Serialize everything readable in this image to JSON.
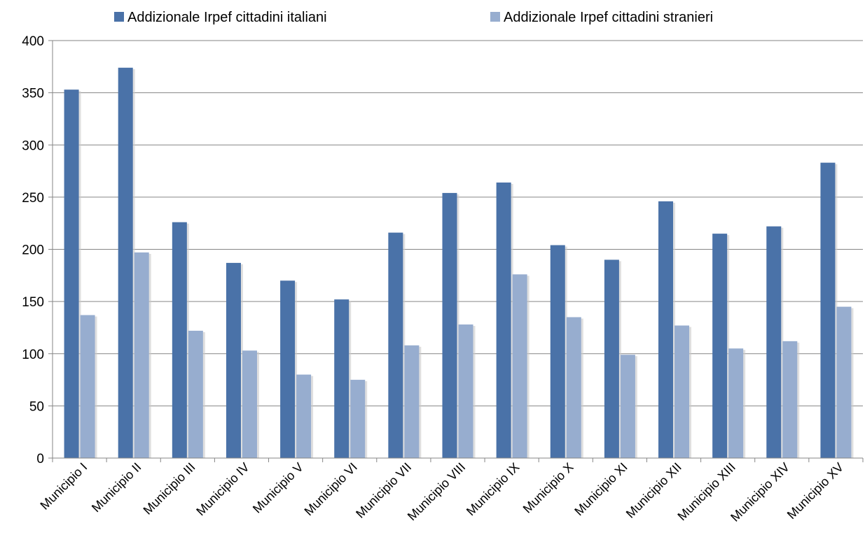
{
  "chart_data": {
    "type": "bar",
    "categories": [
      "Municipio I",
      "Municipio II",
      "Municipio III",
      "Municipio IV",
      "Municipio V",
      "Municipio VI",
      "Municipio VII",
      "Municipio VIII",
      "Municipio IX",
      "Municipio X",
      "Municipio XI",
      "Municipio XII",
      "Municipio XIII",
      "Municipio XIV",
      "Municipio XV"
    ],
    "series": [
      {
        "name": "Addizionale Irpef cittadini italiani",
        "color": "#4a72a8",
        "values": [
          353,
          374,
          226,
          187,
          170,
          152,
          216,
          254,
          264,
          204,
          190,
          246,
          215,
          222,
          283
        ]
      },
      {
        "name": "Addizionale Irpef cittadini stranieri",
        "color": "#97adcf",
        "values": [
          137,
          197,
          122,
          103,
          80,
          75,
          108,
          128,
          176,
          135,
          99,
          127,
          105,
          112,
          145
        ]
      }
    ],
    "yticks": [
      "0",
      "50",
      "100",
      "150",
      "200",
      "250",
      "300",
      "350",
      "400"
    ],
    "ylim": [
      0,
      400
    ],
    "grid": true,
    "legend": "top"
  }
}
